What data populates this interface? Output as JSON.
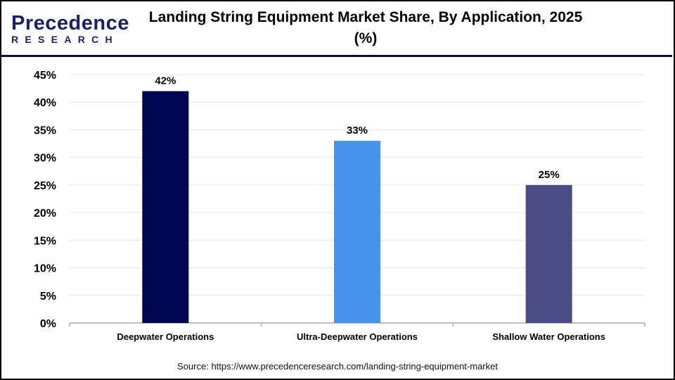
{
  "logo": {
    "text_main": "Precedence",
    "text_sub": "RESEARCH"
  },
  "title": "Landing String Equipment Market Share, By Application, 2025 (%)",
  "source": "Source: https://www.precedenceresearch.com/landing-string-equipment-market",
  "colors": {
    "deepwater": "#000650",
    "ultra": "#4693EE",
    "shallow": "#4B4E86",
    "grid": "#e6e6e6",
    "axis": "#bfbfbf"
  },
  "chart_data": {
    "type": "bar",
    "title": "Landing String Equipment Market Share, By Application, 2025 (%)",
    "categories": [
      "Deepwater Operations",
      "Ultra-Deepwater Operations",
      "Shallow Water Operations"
    ],
    "values": [
      42,
      33,
      25
    ],
    "data_labels": [
      "42%",
      "33%",
      "25%"
    ],
    "bar_colors": [
      "#000650",
      "#4693EE",
      "#4B4E86"
    ],
    "ylim": [
      0,
      45
    ],
    "yticks": [
      "0%",
      "5%",
      "10%",
      "15%",
      "20%",
      "25%",
      "30%",
      "35%",
      "40%",
      "45%"
    ],
    "grid": true,
    "legend": "none",
    "xlabel": "",
    "ylabel": ""
  }
}
